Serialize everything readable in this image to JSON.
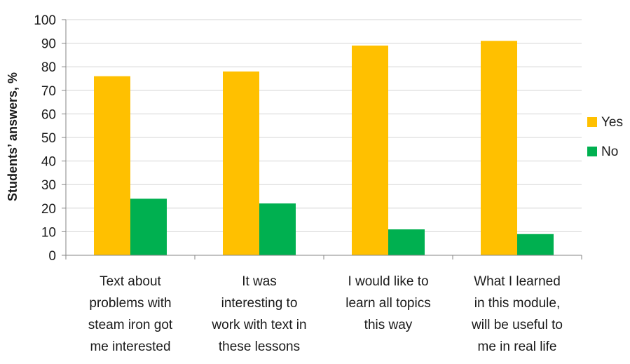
{
  "chart_data": {
    "type": "bar",
    "title": "",
    "xlabel": "",
    "ylabel": "Students’ answers, %",
    "ylim": [
      0,
      100
    ],
    "yticks": [
      0,
      10,
      20,
      30,
      40,
      50,
      60,
      70,
      80,
      90,
      100
    ],
    "grid": true,
    "legend_position": "right",
    "categories": [
      [
        "Text about",
        "problems with",
        "steam iron got",
        "me interested"
      ],
      [
        "It was",
        "interesting to",
        "work with text in",
        "these lessons"
      ],
      [
        "I would like to",
        "learn all topics",
        "this way"
      ],
      [
        "What I learned",
        "in this module,",
        "will be useful to",
        "me in real life"
      ]
    ],
    "series": [
      {
        "name": "Yes",
        "color": "#FFC000",
        "values": [
          76,
          78,
          89,
          91
        ]
      },
      {
        "name": "No",
        "color": "#00B050",
        "values": [
          24,
          22,
          11,
          9
        ]
      }
    ]
  }
}
